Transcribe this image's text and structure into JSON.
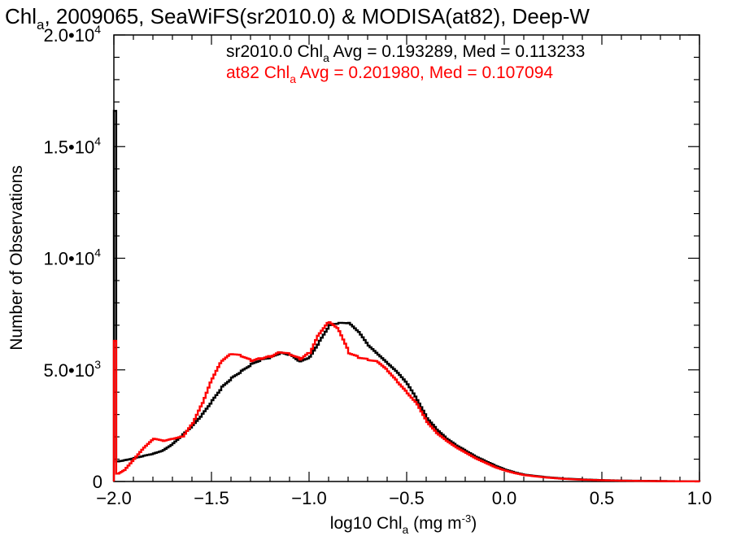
{
  "chart_data": {
    "type": "line",
    "title": {
      "pre": "Chl",
      "sub": "a",
      "post": ", 2009065, SeaWiFS(sr2010.0) & MODISA(at82), Deep-W"
    },
    "xlabel": {
      "pre": "log10 Chl",
      "sub": "a",
      "mid": " (mg m",
      "sup": "-3",
      "post": ")"
    },
    "ylabel": "Number of Observations",
    "xlim": [
      -2.0,
      1.0
    ],
    "ylim": [
      0,
      20000
    ],
    "x_ticks": [
      {
        "v": -2.0,
        "label": "−2.0"
      },
      {
        "v": -1.5,
        "label": "−1.5"
      },
      {
        "v": -1.0,
        "label": "−1.0"
      },
      {
        "v": -0.5,
        "label": "−0.5"
      },
      {
        "v": 0.0,
        "label": "0.0"
      },
      {
        "v": 0.5,
        "label": "0.5"
      },
      {
        "v": 1.0,
        "label": "1.0"
      }
    ],
    "y_ticks": [
      {
        "v": 0,
        "label": "0",
        "exp": ""
      },
      {
        "v": 5000,
        "label": "5.0•10",
        "exp": "3"
      },
      {
        "v": 10000,
        "label": "1.0•10",
        "exp": "4"
      },
      {
        "v": 15000,
        "label": "1.5•10",
        "exp": "4"
      },
      {
        "v": 20000,
        "label": "2.0•10",
        "exp": "4"
      }
    ],
    "legend_placement": "top",
    "series": [
      {
        "color": "#000000",
        "stats": {
          "pre": "sr2010.0 Chl",
          "sub": "a",
          "post": " Avg = 0.193289, Med = 0.113233"
        },
        "x": [
          -2.0,
          -1.98,
          -1.95,
          -1.9,
          -1.85,
          -1.8,
          -1.75,
          -1.7,
          -1.65,
          -1.6,
          -1.55,
          -1.5,
          -1.45,
          -1.4,
          -1.35,
          -1.3,
          -1.25,
          -1.2,
          -1.15,
          -1.1,
          -1.05,
          -1.0,
          -0.95,
          -0.9,
          -0.85,
          -0.8,
          -0.75,
          -0.7,
          -0.65,
          -0.6,
          -0.55,
          -0.5,
          -0.45,
          -0.4,
          -0.35,
          -0.3,
          -0.25,
          -0.2,
          -0.15,
          -0.1,
          -0.05,
          0.0,
          0.05,
          0.1,
          0.2,
          0.3,
          0.4,
          0.5,
          0.6,
          0.7,
          0.8,
          0.9,
          1.0
        ],
        "y": [
          16600,
          900,
          950,
          1050,
          1150,
          1250,
          1400,
          1700,
          2100,
          2500,
          3000,
          3600,
          4200,
          4600,
          4900,
          5200,
          5400,
          5500,
          5700,
          5600,
          5300,
          5500,
          6200,
          6900,
          7000,
          7000,
          6600,
          6000,
          5600,
          5200,
          4800,
          4300,
          3600,
          2800,
          2300,
          1900,
          1600,
          1350,
          1100,
          900,
          700,
          530,
          400,
          300,
          200,
          130,
          90,
          60,
          40,
          30,
          20,
          10,
          5
        ]
      },
      {
        "color": "#ff0000",
        "stats": {
          "pre": "at82 Chl",
          "sub": "a",
          "post": " Avg = 0.201980, Med = 0.107094"
        },
        "x": [
          -2.0,
          -1.98,
          -1.95,
          -1.9,
          -1.85,
          -1.8,
          -1.75,
          -1.7,
          -1.65,
          -1.6,
          -1.55,
          -1.5,
          -1.45,
          -1.4,
          -1.35,
          -1.3,
          -1.25,
          -1.2,
          -1.15,
          -1.1,
          -1.05,
          -1.0,
          -0.95,
          -0.9,
          -0.85,
          -0.8,
          -0.75,
          -0.7,
          -0.65,
          -0.6,
          -0.55,
          -0.5,
          -0.45,
          -0.4,
          -0.35,
          -0.3,
          -0.25,
          -0.2,
          -0.15,
          -0.1,
          -0.05,
          0.0,
          0.05,
          0.1,
          0.2,
          0.3,
          0.4,
          0.5,
          0.6,
          0.7,
          0.8,
          0.9,
          1.0
        ],
        "y": [
          6300,
          350,
          500,
          1000,
          1500,
          1900,
          1800,
          1900,
          2000,
          2600,
          3500,
          4600,
          5400,
          5700,
          5600,
          5400,
          5500,
          5600,
          5800,
          5700,
          5500,
          5800,
          6700,
          7200,
          6800,
          5800,
          5600,
          5500,
          5400,
          5000,
          4500,
          4000,
          3500,
          2700,
          2200,
          1850,
          1550,
          1300,
          1050,
          850,
          650,
          500,
          380,
          290,
          190,
          120,
          80,
          55,
          35,
          25,
          15,
          8,
          4
        ]
      }
    ]
  }
}
